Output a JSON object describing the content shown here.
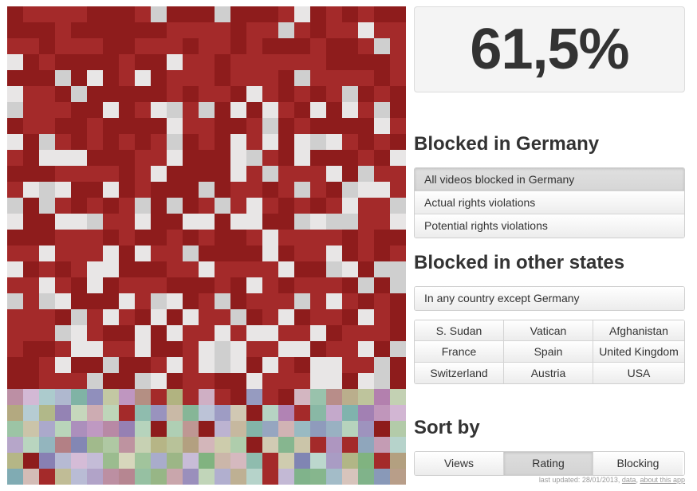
{
  "stat": {
    "value": "61,5%"
  },
  "germany": {
    "heading": "Blocked in Germany",
    "options": [
      {
        "label": "All videos blocked in Germany",
        "active": true
      },
      {
        "label": "Actual rights violations",
        "active": false
      },
      {
        "label": "Potential rights violations",
        "active": false
      }
    ]
  },
  "other": {
    "heading": "Blocked in other states",
    "except_label": "In any country except Germany",
    "countries": [
      "S. Sudan",
      "Vatican",
      "Afghanistan",
      "France",
      "Spain",
      "United Kingdom",
      "Switzerland",
      "Austria",
      "USA"
    ]
  },
  "sort": {
    "heading": "Sort by",
    "options": [
      {
        "label": "Views",
        "active": false
      },
      {
        "label": "Rating",
        "active": true
      },
      {
        "label": "Blocking",
        "active": false
      }
    ]
  },
  "footer": {
    "updated": "last updated: 28/01/2013, ",
    "data_link": "data",
    "separator": ", ",
    "about_link": "about this app"
  },
  "mosaic": {
    "blocked_fraction": 0.615,
    "colors": {
      "blocked": "#8e1c1c",
      "blocked_alt": "#a42a2a",
      "unblocked": "#e8e6e6",
      "unblocked_alt": "#cfcfcf"
    }
  }
}
